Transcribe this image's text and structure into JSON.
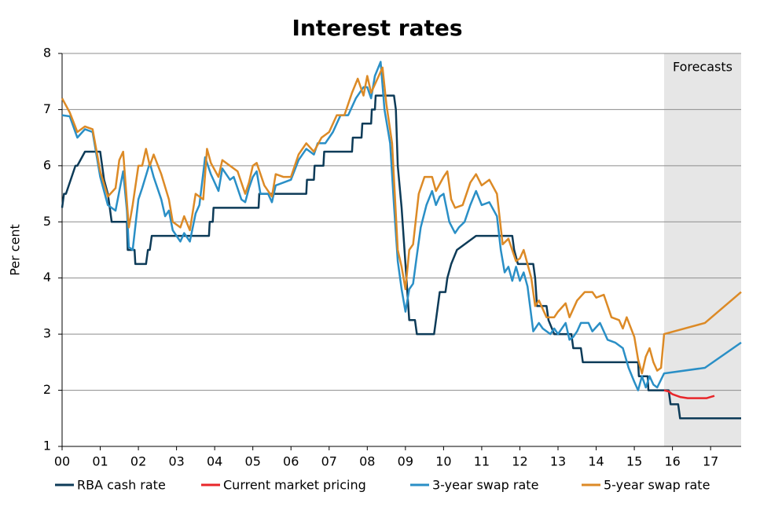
{
  "chart_data": {
    "type": "line",
    "title": "Interest rates",
    "y_label": "Per cent",
    "xlim": [
      2000,
      2017.8
    ],
    "ylim": [
      1,
      8
    ],
    "yticks": [
      1,
      2,
      3,
      4,
      5,
      6,
      7,
      8
    ],
    "xticks": [
      {
        "value": 2000,
        "label": "00"
      },
      {
        "value": 2001,
        "label": "01"
      },
      {
        "value": 2002,
        "label": "02"
      },
      {
        "value": 2003,
        "label": "03"
      },
      {
        "value": 2004,
        "label": "04"
      },
      {
        "value": 2005,
        "label": "05"
      },
      {
        "value": 2006,
        "label": "06"
      },
      {
        "value": 2007,
        "label": "07"
      },
      {
        "value": 2008,
        "label": "08"
      },
      {
        "value": 2009,
        "label": "09"
      },
      {
        "value": 2010,
        "label": "10"
      },
      {
        "value": 2011,
        "label": "11"
      },
      {
        "value": 2012,
        "label": "12"
      },
      {
        "value": 2013,
        "label": "13"
      },
      {
        "value": 2014,
        "label": "14"
      },
      {
        "value": 2015,
        "label": "15"
      },
      {
        "value": 2016,
        "label": "16"
      },
      {
        "value": 2017,
        "label": "17"
      }
    ],
    "grid": true,
    "shaded_region": {
      "xlim": [
        2015.78,
        2017.8
      ],
      "label": "Forecasts",
      "color": "#e6e6e6"
    },
    "legend": "bottom",
    "series": [
      {
        "name": "RBA cash rate",
        "color": "#0d3b58",
        "x": [
          2000,
          2000.05,
          2000.1,
          2000.35,
          2000.4,
          2000.6,
          2000.65,
          2001.0,
          2001.1,
          2001.2,
          2001.25,
          2001.3,
          2001.7,
          2001.72,
          2001.9,
          2001.92,
          2002.2,
          2002.25,
          2002.3,
          2002.35,
          2003.85,
          2003.87,
          2003.95,
          2003.97,
          2005.15,
          2005.17,
          2006.4,
          2006.42,
          2006.6,
          2006.62,
          2006.85,
          2006.87,
          2007.6,
          2007.62,
          2007.85,
          2007.87,
          2008.1,
          2008.12,
          2008.2,
          2008.22,
          2008.7,
          2008.75,
          2008.8,
          2008.9,
          2009.0,
          2009.1,
          2009.25,
          2009.3,
          2009.75,
          2009.8,
          2009.85,
          2009.9,
          2010.05,
          2010.1,
          2010.2,
          2010.35,
          2010.85,
          2011.8,
          2011.85,
          2011.95,
          2012.35,
          2012.4,
          2012.45,
          2012.7,
          2012.75,
          2012.9,
          2012.95,
          2013.35,
          2013.4,
          2013.6,
          2013.65,
          2015.1,
          2015.12,
          2015.35,
          2015.37,
          2015.9,
          2015.95,
          2016.15,
          2016.2,
          2017.8
        ],
        "values": [
          5.25,
          5.5,
          5.5,
          6.0,
          6.0,
          6.25,
          6.25,
          6.25,
          5.75,
          5.5,
          5.25,
          5.0,
          5.0,
          4.5,
          4.5,
          4.25,
          4.25,
          4.5,
          4.5,
          4.75,
          4.75,
          5.0,
          5.0,
          5.25,
          5.25,
          5.5,
          5.5,
          5.75,
          5.75,
          6.0,
          6.0,
          6.25,
          6.25,
          6.5,
          6.5,
          6.75,
          6.75,
          7.0,
          7.0,
          7.25,
          7.25,
          7.0,
          6.0,
          5.25,
          4.25,
          3.25,
          3.25,
          3.0,
          3.0,
          3.25,
          3.5,
          3.75,
          3.75,
          4.0,
          4.25,
          4.5,
          4.75,
          4.75,
          4.5,
          4.25,
          4.25,
          4.0,
          3.5,
          3.5,
          3.25,
          3.0,
          3.0,
          3.0,
          2.75,
          2.75,
          2.5,
          2.5,
          2.25,
          2.25,
          2.0,
          2.0,
          1.75,
          1.75,
          1.5,
          1.5
        ]
      },
      {
        "name": "Current market pricing",
        "color": "#e8262a",
        "x": [
          2015.78,
          2015.9,
          2016.0,
          2016.2,
          2016.4,
          2016.6,
          2016.9,
          2017.0,
          2017.1
        ],
        "values": [
          2.0,
          1.98,
          1.93,
          1.88,
          1.86,
          1.86,
          1.86,
          1.88,
          1.9
        ]
      },
      {
        "name": "3-year swap rate",
        "color": "#2a8fc6",
        "x": [
          2000.0,
          2000.2,
          2000.4,
          2000.6,
          2000.8,
          2001.0,
          2001.2,
          2001.4,
          2001.6,
          2001.7,
          2001.75,
          2001.85,
          2002.0,
          2002.1,
          2002.3,
          2002.4,
          2002.6,
          2002.7,
          2002.8,
          2002.9,
          2003.1,
          2003.2,
          2003.35,
          2003.5,
          2003.6,
          2003.75,
          2003.9,
          2004.1,
          2004.2,
          2004.4,
          2004.5,
          2004.7,
          2004.8,
          2004.9,
          2005.0,
          2005.1,
          2005.2,
          2005.4,
          2005.5,
          2005.6,
          2005.8,
          2006.0,
          2006.2,
          2006.4,
          2006.6,
          2006.7,
          2006.9,
          2007.1,
          2007.3,
          2007.5,
          2007.7,
          2007.9,
          2008.0,
          2008.1,
          2008.2,
          2008.35,
          2008.45,
          2008.6,
          2008.7,
          2008.8,
          2008.9,
          2009.0,
          2009.1,
          2009.2,
          2009.3,
          2009.4,
          2009.55,
          2009.7,
          2009.8,
          2009.9,
          2010.0,
          2010.15,
          2010.3,
          2010.4,
          2010.55,
          2010.7,
          2010.85,
          2011.0,
          2011.2,
          2011.4,
          2011.5,
          2011.6,
          2011.7,
          2011.8,
          2011.9,
          2012.0,
          2012.1,
          2012.2,
          2012.35,
          2012.5,
          2012.6,
          2012.8,
          2012.9,
          2013.0,
          2013.2,
          2013.3,
          2013.4,
          2013.5,
          2013.6,
          2013.8,
          2013.9,
          2014.1,
          2014.3,
          2014.5,
          2014.7,
          2014.85,
          2015.0,
          2015.1,
          2015.2,
          2015.3,
          2015.4,
          2015.5,
          2015.6,
          2015.78,
          2016.85,
          2017.8
        ],
        "values": [
          6.9,
          6.88,
          6.5,
          6.65,
          6.6,
          5.8,
          5.3,
          5.2,
          5.9,
          5.2,
          4.55,
          4.5,
          5.4,
          5.6,
          6.05,
          5.8,
          5.4,
          5.1,
          5.2,
          4.85,
          4.65,
          4.8,
          4.65,
          5.15,
          5.3,
          6.15,
          5.85,
          5.55,
          5.95,
          5.75,
          5.8,
          5.4,
          5.35,
          5.6,
          5.8,
          5.9,
          5.5,
          5.5,
          5.35,
          5.65,
          5.7,
          5.75,
          6.1,
          6.3,
          6.2,
          6.4,
          6.4,
          6.6,
          6.9,
          6.9,
          7.2,
          7.4,
          7.4,
          7.2,
          7.6,
          7.85,
          7.0,
          6.4,
          5.3,
          4.3,
          3.8,
          3.4,
          3.8,
          3.9,
          4.4,
          4.9,
          5.3,
          5.55,
          5.3,
          5.45,
          5.5,
          5.0,
          4.8,
          4.9,
          5.0,
          5.3,
          5.55,
          5.3,
          5.35,
          5.1,
          4.5,
          4.1,
          4.2,
          3.95,
          4.2,
          3.95,
          4.1,
          3.85,
          3.05,
          3.2,
          3.1,
          3.0,
          3.1,
          3.0,
          3.2,
          2.9,
          2.95,
          3.05,
          3.2,
          3.2,
          3.05,
          3.2,
          2.9,
          2.85,
          2.75,
          2.4,
          2.15,
          2.0,
          2.25,
          2.05,
          2.25,
          2.1,
          2.05,
          2.3,
          2.4,
          2.85
        ]
      },
      {
        "name": "5-year swap rate",
        "color": "#dc8a26",
        "x": [
          2000.0,
          2000.2,
          2000.4,
          2000.6,
          2000.8,
          2001.0,
          2001.2,
          2001.4,
          2001.5,
          2001.6,
          2001.75,
          2001.85,
          2002.0,
          2002.1,
          2002.2,
          2002.3,
          2002.4,
          2002.6,
          2002.8,
          2002.9,
          2003.1,
          2003.2,
          2003.35,
          2003.5,
          2003.7,
          2003.8,
          2003.9,
          2004.1,
          2004.2,
          2004.4,
          2004.6,
          2004.8,
          2004.9,
          2005.0,
          2005.1,
          2005.3,
          2005.5,
          2005.6,
          2005.8,
          2006.0,
          2006.2,
          2006.4,
          2006.6,
          2006.8,
          2007.0,
          2007.2,
          2007.4,
          2007.6,
          2007.75,
          2007.9,
          2008.0,
          2008.1,
          2008.3,
          2008.4,
          2008.5,
          2008.65,
          2008.8,
          2008.9,
          2009.0,
          2009.1,
          2009.2,
          2009.35,
          2009.5,
          2009.7,
          2009.8,
          2010.0,
          2010.1,
          2010.2,
          2010.3,
          2010.5,
          2010.7,
          2010.85,
          2011.0,
          2011.2,
          2011.4,
          2011.55,
          2011.7,
          2011.9,
          2012.0,
          2012.1,
          2012.3,
          2012.4,
          2012.5,
          2012.7,
          2012.9,
          2013.0,
          2013.2,
          2013.3,
          2013.5,
          2013.7,
          2013.9,
          2014.0,
          2014.2,
          2014.4,
          2014.6,
          2014.7,
          2014.8,
          2015.0,
          2015.1,
          2015.2,
          2015.3,
          2015.4,
          2015.5,
          2015.6,
          2015.7,
          2015.78,
          2016.85,
          2017.8
        ],
        "values": [
          7.2,
          6.95,
          6.6,
          6.7,
          6.65,
          5.9,
          5.45,
          5.6,
          6.1,
          6.25,
          4.9,
          5.3,
          6.0,
          6.0,
          6.3,
          6.0,
          6.2,
          5.85,
          5.4,
          5.0,
          4.9,
          5.1,
          4.85,
          5.5,
          5.4,
          6.3,
          6.05,
          5.8,
          6.1,
          6.0,
          5.9,
          5.5,
          5.7,
          6.0,
          6.05,
          5.65,
          5.45,
          5.85,
          5.8,
          5.8,
          6.2,
          6.4,
          6.25,
          6.5,
          6.6,
          6.9,
          6.9,
          7.3,
          7.55,
          7.25,
          7.6,
          7.3,
          7.6,
          7.75,
          7.1,
          6.4,
          4.5,
          4.2,
          3.8,
          4.5,
          4.6,
          5.5,
          5.8,
          5.8,
          5.55,
          5.8,
          5.9,
          5.4,
          5.25,
          5.3,
          5.7,
          5.85,
          5.65,
          5.75,
          5.5,
          4.6,
          4.7,
          4.3,
          4.35,
          4.5,
          4.0,
          3.5,
          3.6,
          3.3,
          3.3,
          3.4,
          3.55,
          3.3,
          3.6,
          3.75,
          3.75,
          3.65,
          3.7,
          3.3,
          3.25,
          3.1,
          3.3,
          2.95,
          2.55,
          2.3,
          2.6,
          2.75,
          2.5,
          2.35,
          2.4,
          3.0,
          3.2,
          3.75
        ]
      }
    ]
  }
}
